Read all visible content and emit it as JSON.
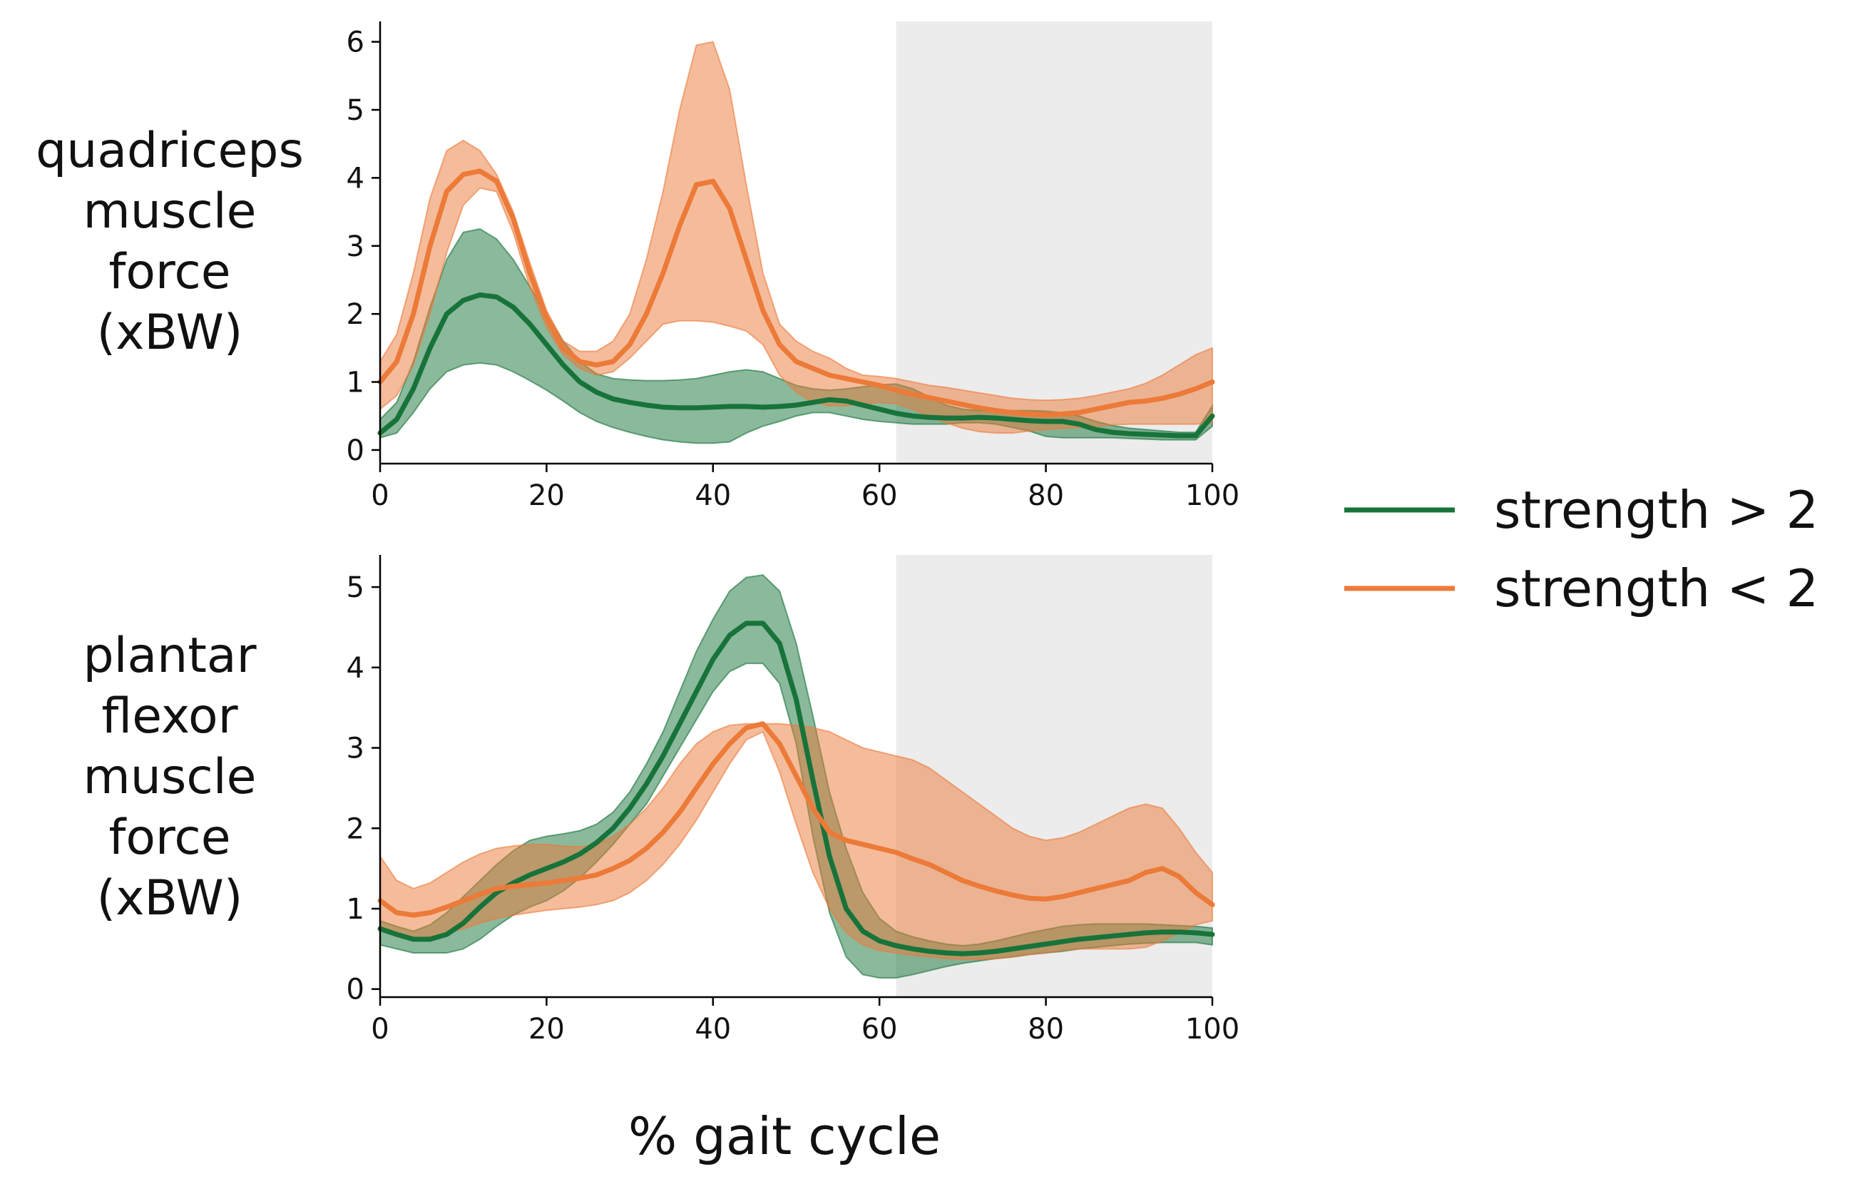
{
  "chart_data": {
    "type": "line",
    "xlabel": "% gait cycle",
    "shaded_region": [
      62,
      100
    ],
    "colors": {
      "strength_gt": "#17733a",
      "strength_lt": "#ec7a38",
      "shade": "#ececec"
    },
    "legend": {
      "placement": "right",
      "entries": [
        {
          "label": "strength > 2",
          "color": "#17733a"
        },
        {
          "label": "strength < 2",
          "color": "#ec7a38"
        }
      ]
    },
    "panels": [
      {
        "ylabel_lines": [
          "quadriceps",
          "muscle",
          "force",
          "(xBW)"
        ],
        "xlim": [
          0,
          100
        ],
        "ylim": [
          -0.2,
          6.3
        ],
        "xticks": [
          "0",
          "20",
          "40",
          "60",
          "80",
          "100"
        ],
        "yticks": [
          "0",
          "1",
          "2",
          "3",
          "4",
          "5",
          "6"
        ],
        "x": [
          0,
          2,
          4,
          6,
          8,
          10,
          12,
          14,
          16,
          18,
          20,
          22,
          24,
          26,
          28,
          30,
          32,
          34,
          36,
          38,
          40,
          42,
          44,
          46,
          48,
          50,
          52,
          54,
          56,
          58,
          60,
          62,
          64,
          66,
          68,
          70,
          72,
          74,
          76,
          78,
          80,
          82,
          84,
          86,
          88,
          90,
          92,
          94,
          96,
          98,
          100
        ],
        "series": [
          {
            "name": "strength > 2",
            "mean": [
              0.25,
              0.45,
              0.9,
              1.5,
              2.0,
              2.2,
              2.28,
              2.25,
              2.1,
              1.85,
              1.55,
              1.25,
              1.0,
              0.85,
              0.75,
              0.7,
              0.66,
              0.63,
              0.62,
              0.62,
              0.63,
              0.64,
              0.64,
              0.63,
              0.64,
              0.66,
              0.7,
              0.74,
              0.72,
              0.66,
              0.6,
              0.54,
              0.5,
              0.48,
              0.47,
              0.47,
              0.48,
              0.47,
              0.45,
              0.43,
              0.42,
              0.42,
              0.38,
              0.3,
              0.26,
              0.24,
              0.23,
              0.22,
              0.21,
              0.21,
              0.5
            ],
            "upper": [
              0.45,
              0.7,
              1.3,
              2.1,
              2.8,
              3.2,
              3.25,
              3.1,
              2.8,
              2.4,
              2.0,
              1.6,
              1.3,
              1.12,
              1.05,
              1.03,
              1.02,
              1.02,
              1.03,
              1.05,
              1.1,
              1.15,
              1.18,
              1.15,
              1.05,
              0.95,
              0.9,
              0.88,
              0.9,
              0.93,
              0.96,
              0.97,
              0.9,
              0.78,
              0.66,
              0.6,
              0.58,
              0.58,
              0.58,
              0.58,
              0.57,
              0.55,
              0.5,
              0.42,
              0.36,
              0.32,
              0.3,
              0.28,
              0.26,
              0.26,
              0.65
            ],
            "lower": [
              0.18,
              0.25,
              0.55,
              0.9,
              1.15,
              1.25,
              1.28,
              1.25,
              1.15,
              1.02,
              0.88,
              0.72,
              0.55,
              0.42,
              0.33,
              0.26,
              0.2,
              0.15,
              0.12,
              0.1,
              0.1,
              0.12,
              0.25,
              0.35,
              0.42,
              0.5,
              0.55,
              0.55,
              0.5,
              0.45,
              0.42,
              0.4,
              0.38,
              0.38,
              0.38,
              0.4,
              0.4,
              0.38,
              0.33,
              0.28,
              0.2,
              0.18,
              0.18,
              0.18,
              0.18,
              0.17,
              0.16,
              0.15,
              0.15,
              0.15,
              0.35
            ]
          },
          {
            "name": "strength < 2",
            "mean": [
              1.0,
              1.3,
              2.0,
              3.0,
              3.8,
              4.05,
              4.1,
              3.95,
              3.4,
              2.6,
              1.95,
              1.5,
              1.3,
              1.25,
              1.3,
              1.55,
              2.0,
              2.6,
              3.3,
              3.9,
              3.95,
              3.55,
              2.8,
              2.05,
              1.55,
              1.3,
              1.2,
              1.1,
              1.05,
              1.0,
              0.95,
              0.88,
              0.82,
              0.77,
              0.72,
              0.67,
              0.62,
              0.58,
              0.55,
              0.53,
              0.52,
              0.53,
              0.55,
              0.6,
              0.65,
              0.7,
              0.72,
              0.76,
              0.82,
              0.9,
              1.0
            ],
            "upper": [
              1.3,
              1.7,
              2.6,
              3.7,
              4.4,
              4.55,
              4.4,
              4.05,
              3.5,
              2.75,
              2.05,
              1.6,
              1.45,
              1.45,
              1.6,
              2.0,
              2.8,
              3.8,
              5.0,
              5.95,
              6.0,
              5.3,
              3.9,
              2.6,
              1.85,
              1.6,
              1.45,
              1.35,
              1.2,
              1.1,
              1.08,
              1.05,
              1.0,
              0.95,
              0.92,
              0.88,
              0.84,
              0.8,
              0.76,
              0.74,
              0.73,
              0.74,
              0.76,
              0.8,
              0.85,
              0.9,
              0.98,
              1.1,
              1.25,
              1.4,
              1.5
            ],
            "lower": [
              0.6,
              0.8,
              1.25,
              2.0,
              2.9,
              3.6,
              3.85,
              3.8,
              3.2,
              2.4,
              1.8,
              1.4,
              1.2,
              1.1,
              1.15,
              1.35,
              1.6,
              1.85,
              1.9,
              1.9,
              1.88,
              1.82,
              1.75,
              1.55,
              1.1,
              0.85,
              0.7,
              0.65,
              0.65,
              0.68,
              0.7,
              0.68,
              0.6,
              0.5,
              0.4,
              0.32,
              0.27,
              0.25,
              0.25,
              0.28,
              0.3,
              0.32,
              0.33,
              0.35,
              0.37,
              0.38,
              0.38,
              0.38,
              0.38,
              0.38,
              0.4
            ]
          }
        ]
      },
      {
        "ylabel_lines": [
          "plantar",
          "flexor",
          "muscle",
          "force",
          "(xBW)"
        ],
        "xlim": [
          0,
          100
        ],
        "ylim": [
          -0.1,
          5.4
        ],
        "xticks": [
          "0",
          "20",
          "40",
          "60",
          "80",
          "100"
        ],
        "yticks": [
          "0",
          "1",
          "2",
          "3",
          "4",
          "5"
        ],
        "x": [
          0,
          2,
          4,
          6,
          8,
          10,
          12,
          14,
          16,
          18,
          20,
          22,
          24,
          26,
          28,
          30,
          32,
          34,
          36,
          38,
          40,
          42,
          44,
          46,
          48,
          50,
          52,
          54,
          56,
          58,
          60,
          62,
          64,
          66,
          68,
          70,
          72,
          74,
          76,
          78,
          80,
          82,
          84,
          86,
          88,
          90,
          92,
          94,
          96,
          98,
          100
        ],
        "series": [
          {
            "name": "strength > 2",
            "mean": [
              0.75,
              0.68,
              0.62,
              0.62,
              0.68,
              0.82,
              1.02,
              1.2,
              1.32,
              1.42,
              1.5,
              1.58,
              1.68,
              1.82,
              2.0,
              2.25,
              2.55,
              2.9,
              3.3,
              3.7,
              4.1,
              4.4,
              4.55,
              4.55,
              4.3,
              3.6,
              2.6,
              1.65,
              1.0,
              0.72,
              0.6,
              0.54,
              0.5,
              0.47,
              0.45,
              0.44,
              0.45,
              0.47,
              0.5,
              0.53,
              0.56,
              0.59,
              0.62,
              0.64,
              0.66,
              0.68,
              0.7,
              0.71,
              0.71,
              0.7,
              0.68
            ],
            "upper": [
              0.85,
              0.78,
              0.72,
              0.8,
              0.95,
              1.15,
              1.35,
              1.55,
              1.72,
              1.85,
              1.9,
              1.93,
              1.97,
              2.05,
              2.2,
              2.45,
              2.8,
              3.2,
              3.7,
              4.2,
              4.6,
              4.95,
              5.12,
              5.15,
              4.95,
              4.3,
              3.4,
              2.45,
              1.75,
              1.2,
              0.88,
              0.72,
              0.65,
              0.6,
              0.56,
              0.54,
              0.56,
              0.6,
              0.65,
              0.7,
              0.74,
              0.78,
              0.8,
              0.81,
              0.81,
              0.81,
              0.81,
              0.8,
              0.79,
              0.78,
              0.76
            ],
            "lower": [
              0.55,
              0.5,
              0.45,
              0.45,
              0.45,
              0.5,
              0.62,
              0.78,
              0.92,
              1.02,
              1.1,
              1.22,
              1.38,
              1.58,
              1.8,
              2.05,
              2.3,
              2.65,
              3.0,
              3.35,
              3.7,
              3.95,
              4.05,
              4.05,
              3.8,
              3.05,
              1.9,
              0.95,
              0.4,
              0.18,
              0.14,
              0.14,
              0.18,
              0.23,
              0.28,
              0.32,
              0.35,
              0.38,
              0.4,
              0.43,
              0.45,
              0.47,
              0.5,
              0.52,
              0.54,
              0.56,
              0.57,
              0.58,
              0.58,
              0.58,
              0.55
            ]
          },
          {
            "name": "strength < 2",
            "mean": [
              1.1,
              0.95,
              0.92,
              0.95,
              1.02,
              1.1,
              1.18,
              1.25,
              1.28,
              1.3,
              1.32,
              1.35,
              1.38,
              1.42,
              1.5,
              1.6,
              1.75,
              1.95,
              2.2,
              2.5,
              2.8,
              3.05,
              3.25,
              3.3,
              3.05,
              2.65,
              2.25,
              1.95,
              1.85,
              1.8,
              1.75,
              1.7,
              1.62,
              1.55,
              1.45,
              1.35,
              1.28,
              1.22,
              1.17,
              1.13,
              1.12,
              1.15,
              1.2,
              1.25,
              1.3,
              1.35,
              1.45,
              1.5,
              1.4,
              1.2,
              1.05
            ],
            "upper": [
              1.65,
              1.35,
              1.25,
              1.32,
              1.45,
              1.58,
              1.68,
              1.75,
              1.78,
              1.8,
              1.8,
              1.78,
              1.77,
              1.8,
              1.9,
              2.05,
              2.25,
              2.5,
              2.8,
              3.05,
              3.2,
              3.28,
              3.3,
              3.3,
              3.3,
              3.28,
              3.25,
              3.2,
              3.1,
              3.0,
              2.95,
              2.9,
              2.85,
              2.75,
              2.6,
              2.45,
              2.3,
              2.15,
              2.0,
              1.9,
              1.85,
              1.88,
              1.95,
              2.05,
              2.15,
              2.25,
              2.3,
              2.25,
              2.0,
              1.7,
              1.45
            ],
            "lower": [
              0.75,
              0.65,
              0.62,
              0.65,
              0.7,
              0.75,
              0.82,
              0.88,
              0.92,
              0.95,
              0.98,
              1.0,
              1.02,
              1.05,
              1.1,
              1.2,
              1.35,
              1.55,
              1.8,
              2.1,
              2.45,
              2.8,
              3.1,
              3.2,
              2.7,
              2.05,
              1.45,
              1.0,
              0.7,
              0.55,
              0.48,
              0.45,
              0.42,
              0.4,
              0.38,
              0.37,
              0.37,
              0.38,
              0.4,
              0.43,
              0.45,
              0.48,
              0.5,
              0.5,
              0.5,
              0.5,
              0.52,
              0.6,
              0.7,
              0.8,
              0.85
            ]
          }
        ]
      }
    ]
  }
}
